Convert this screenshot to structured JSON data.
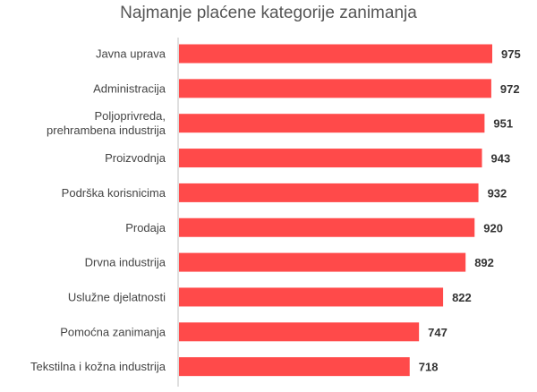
{
  "chart_data": {
    "type": "bar",
    "orientation": "horizontal",
    "title": "Najmanje plaćene kategorije zanimanja",
    "xlabel": "",
    "ylabel": "",
    "categories": [
      "Javna uprava",
      "Administracija",
      [
        "Poljoprivreda,",
        "prehrambena industrija"
      ],
      "Proizvodnja",
      "Podrška korisnicima",
      "Prodaja",
      "Drvna industrija",
      "Uslužne djelatnosti",
      "Pomoćna zanimanja",
      "Tekstilna i kožna industrija"
    ],
    "values": [
      975,
      972,
      951,
      943,
      932,
      920,
      892,
      822,
      747,
      718
    ],
    "xlim": [
      0,
      975
    ],
    "grid": false,
    "legend": "none",
    "bar_color": "#FF4A4A",
    "axis_color": "#bfbfbf"
  }
}
